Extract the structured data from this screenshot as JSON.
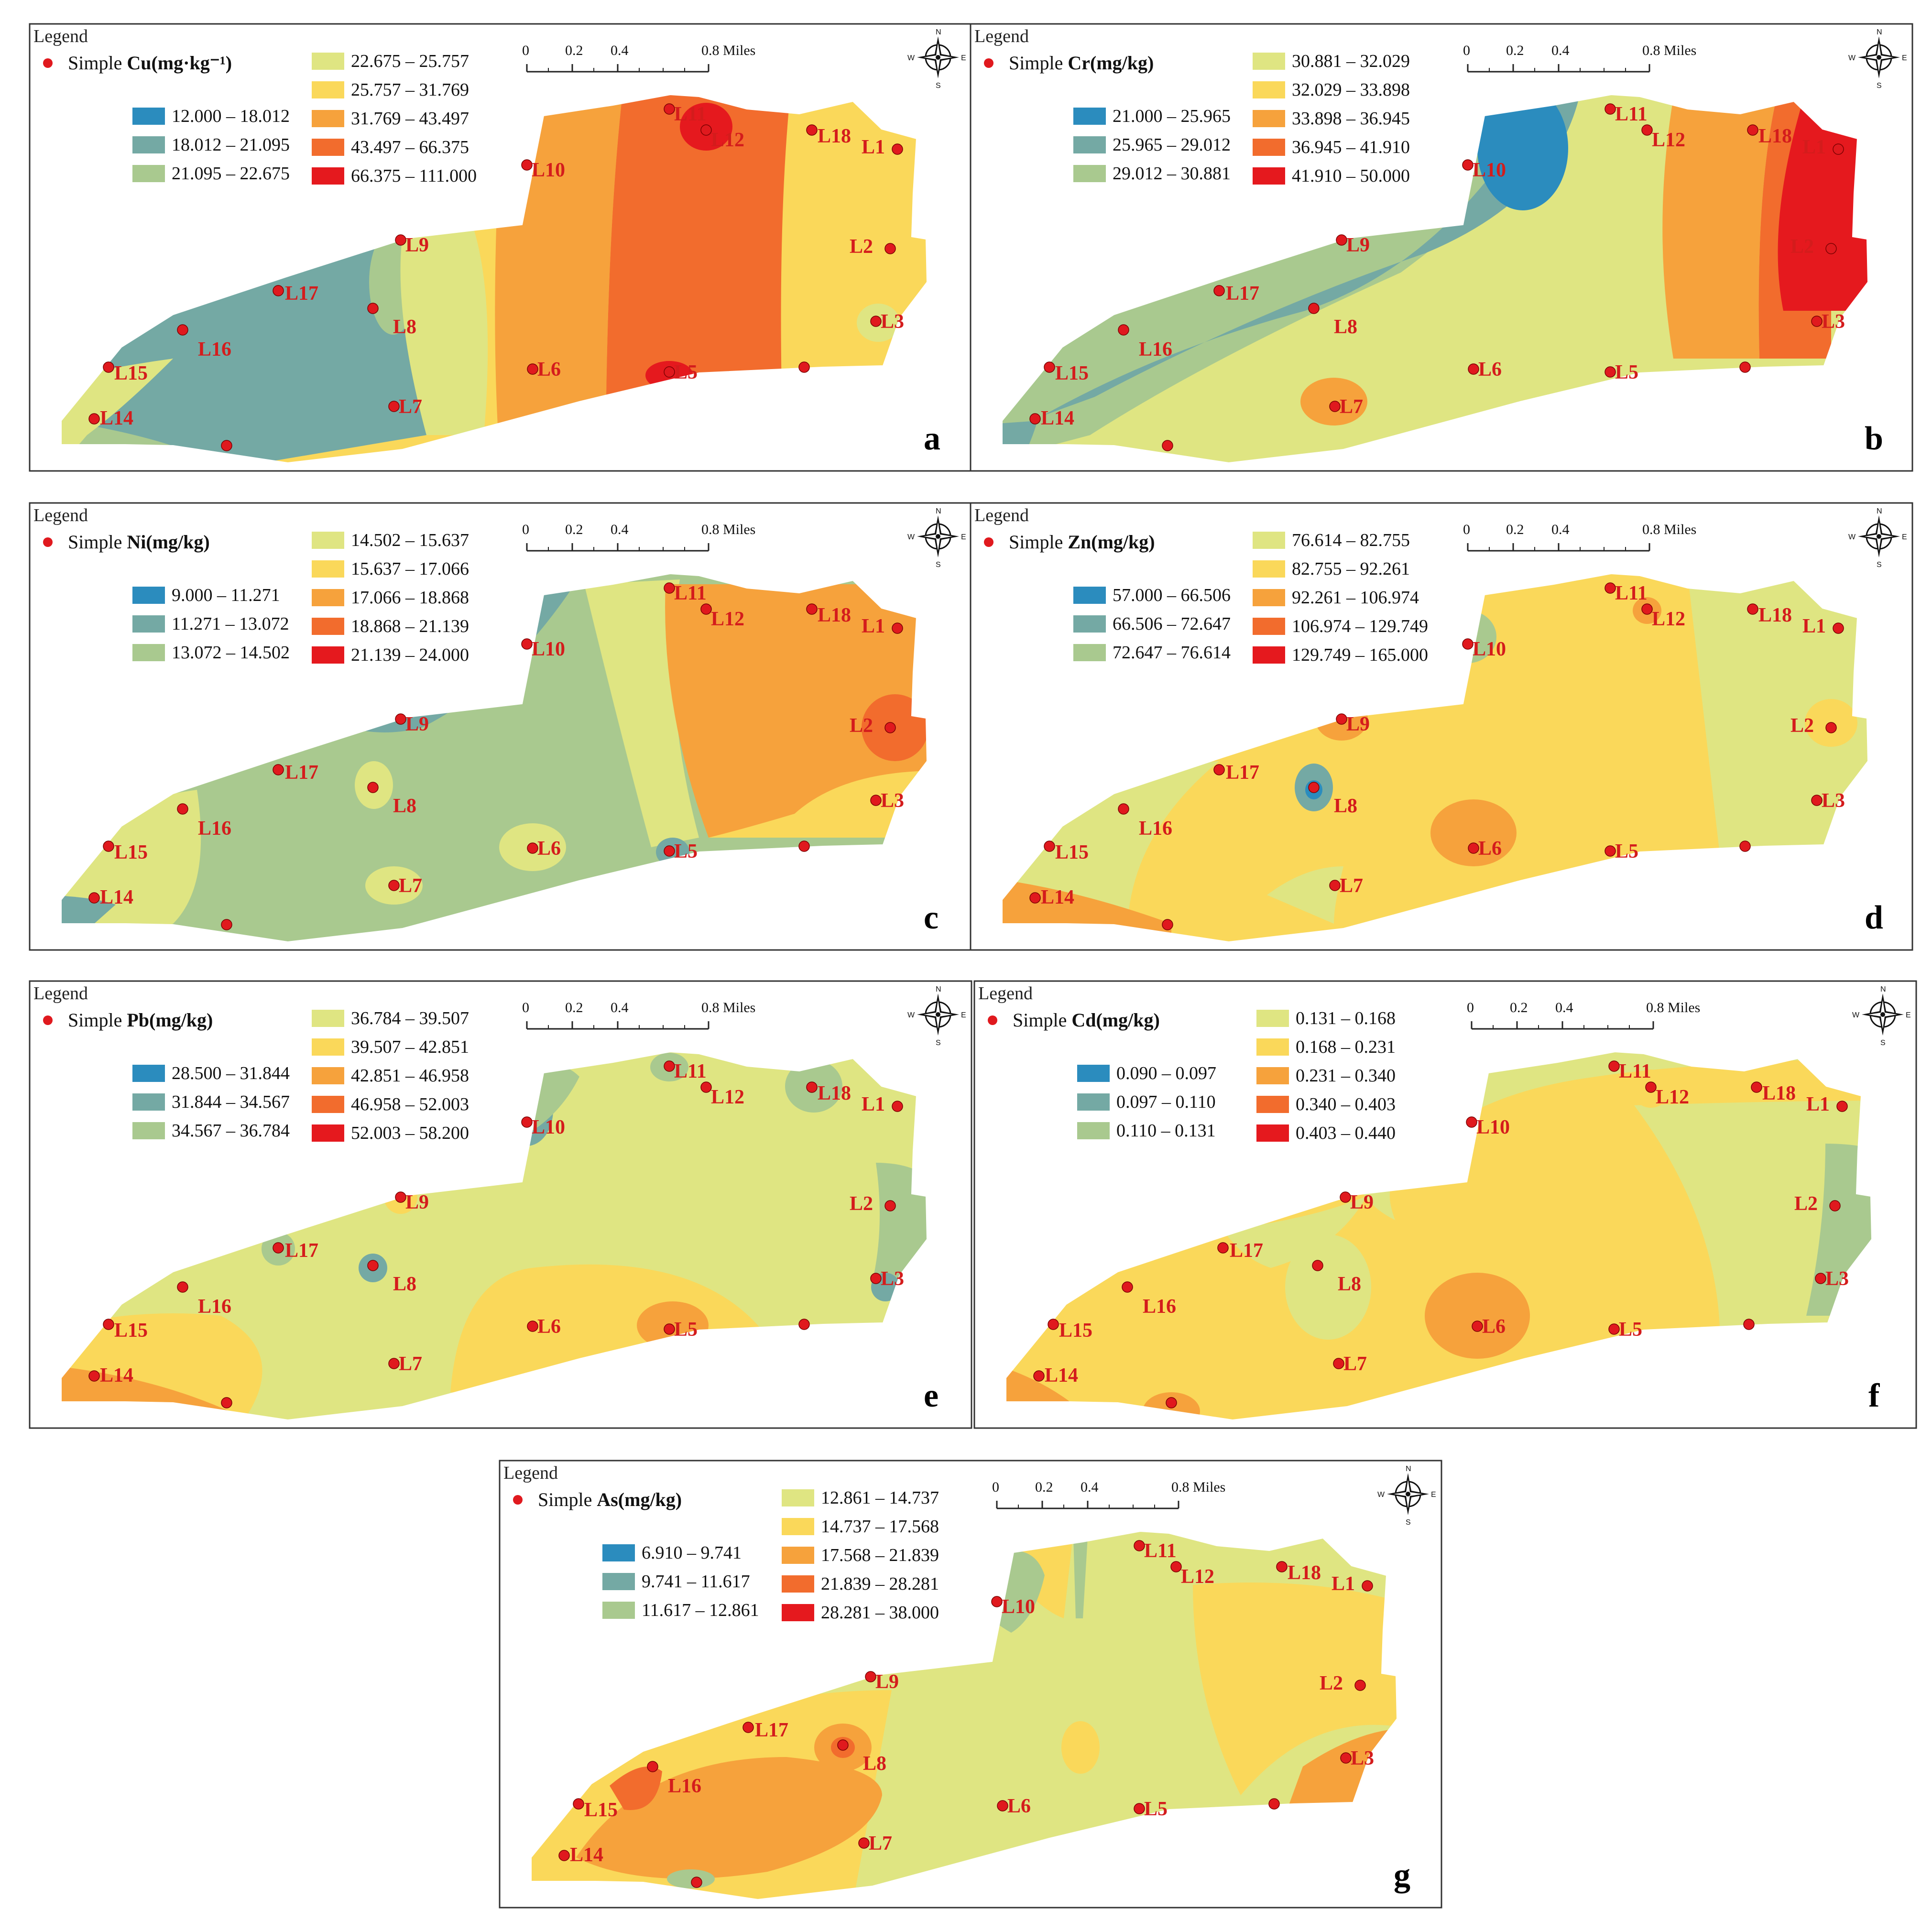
{
  "legend_title": "Legend",
  "simple_prefix": "Simple",
  "scale": {
    "ticks": [
      "0",
      "0.2",
      "0.4",
      "0.8 Miles"
    ]
  },
  "compass": {
    "n": "N",
    "s": "S",
    "e": "E",
    "w": "W"
  },
  "class_colors": [
    "#2b8cbe",
    "#74a9a4",
    "#a9c98f",
    "#dfe582",
    "#fad85a",
    "#f6a23c",
    "#f26c2d",
    "#e5191e"
  ],
  "site_color": "#e0191e",
  "site_labels": [
    "L1",
    "L2",
    "L3",
    "L5",
    "L6",
    "L7",
    "L8",
    "L9",
    "L10",
    "L11",
    "L12",
    "L14",
    "L15",
    "L16",
    "L17",
    "L18"
  ],
  "panels": [
    {
      "letter": "a",
      "element": "Cu(mg·kg⁻¹)",
      "classes": [
        "12.000 – 18.012",
        "18.012 – 21.095",
        "21.095 – 22.675",
        "22.675 – 25.757",
        "25.757 – 31.769",
        "31.769 – 43.497",
        "43.497 – 66.375",
        "66.375 – 111.000"
      ]
    },
    {
      "letter": "b",
      "element": "Cr(mg/kg)",
      "classes": [
        "21.000 – 25.965",
        "25.965 – 29.012",
        "29.012 – 30.881",
        "30.881 – 32.029",
        "32.029 – 33.898",
        "33.898 – 36.945",
        "36.945 – 41.910",
        "41.910 – 50.000"
      ]
    },
    {
      "letter": "c",
      "element": "Ni(mg/kg)",
      "classes": [
        "9.000 – 11.271",
        "11.271 – 13.072",
        "13.072 – 14.502",
        "14.502 – 15.637",
        "15.637 – 17.066",
        "17.066 – 18.868",
        "18.868 – 21.139",
        "21.139 – 24.000"
      ]
    },
    {
      "letter": "d",
      "element": "Zn(mg/kg)",
      "classes": [
        "57.000 – 66.506",
        "66.506 – 72.647",
        "72.647 – 76.614",
        "76.614 – 82.755",
        "82.755 – 92.261",
        "92.261 – 106.974",
        "106.974 – 129.749",
        "129.749 – 165.000"
      ]
    },
    {
      "letter": "e",
      "element": "Pb(mg/kg)",
      "classes": [
        "28.500 – 31.844",
        "31.844 – 34.567",
        "34.567 – 36.784",
        "36.784 – 39.507",
        "39.507 – 42.851",
        "42.851 – 46.958",
        "46.958 – 52.003",
        "52.003 – 58.200"
      ]
    },
    {
      "letter": "f",
      "element": "Cd(mg/kg)",
      "classes": [
        "0.090 – 0.097",
        "0.097 – 0.110",
        "0.110 – 0.131",
        "0.131 – 0.168",
        "0.168 – 0.231",
        "0.231 – 0.340",
        "0.340 – 0.403",
        "0.403 – 0.440"
      ]
    },
    {
      "letter": "g",
      "element": "As(mg/kg)",
      "classes": [
        "6.910 – 9.741",
        "9.741 – 11.617",
        "11.617 – 12.861",
        "12.861 – 14.737",
        "14.737 – 17.568",
        "17.568 – 21.839",
        "21.839 – 28.281",
        "28.281 – 38.000"
      ]
    }
  ]
}
